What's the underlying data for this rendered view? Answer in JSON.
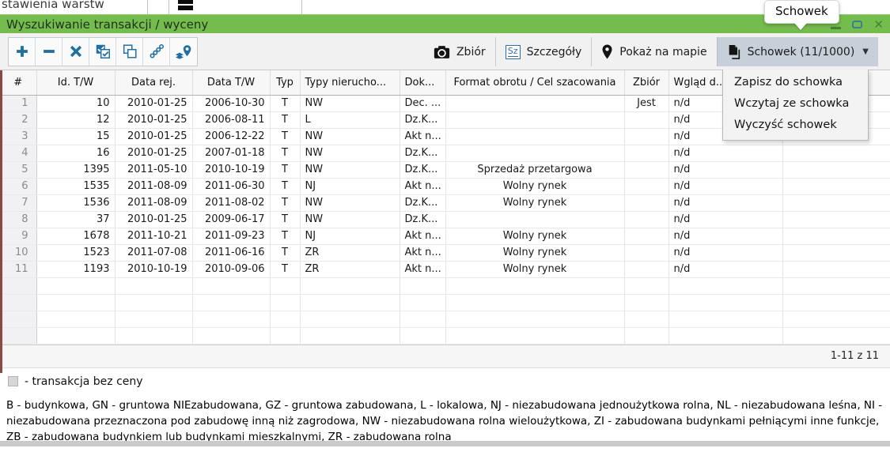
{
  "background": {
    "partial_text": "stawienia warstw"
  },
  "window": {
    "title": "Wyszukiwanie transakcji / wyceny"
  },
  "tooltip": {
    "text": "Schowek"
  },
  "toolbar": {
    "left_tools": [
      {
        "name": "add-button",
        "icon": "plus-icon"
      },
      {
        "name": "remove-button",
        "icon": "minus-icon"
      },
      {
        "name": "clear-button",
        "icon": "x-icon"
      },
      {
        "name": "select-all-button",
        "icon": "double-checkbox-icon"
      },
      {
        "name": "selection-button",
        "icon": "overlapping-squares-icon"
      },
      {
        "name": "chain-selection-button",
        "icon": "chain-icon"
      },
      {
        "name": "locate-on-map-button",
        "icon": "layers-pin-icon"
      }
    ],
    "right_buttons": [
      {
        "label": "Zbiór",
        "icon": "camera-icon"
      },
      {
        "label": "Szczegóły",
        "icon": "sz-icon",
        "icon_text": "Sz"
      },
      {
        "label": "Pokaż na mapie",
        "icon": "map-pin-icon"
      },
      {
        "label": "Schowek (11/1000)",
        "icon": "clipboard-icon",
        "caret": "▼",
        "active": true
      }
    ]
  },
  "dropdown": {
    "items": [
      "Zapisz do schowka",
      "Wczytaj ze schowka",
      "Wyczyść schowek"
    ]
  },
  "table": {
    "columns": [
      "#",
      "Id. T/W",
      "Data rej.",
      "Data T/W",
      "Typ",
      "Typy nierucho...",
      "Dok...",
      "Format obrotu / Cel szacowania",
      "Zbiór",
      "Wgląd d...",
      ""
    ],
    "rows": [
      [
        "1",
        "10",
        "2010-01-25",
        "2006-10-30",
        "T",
        "NW",
        "Dec. ...",
        "",
        "Jest",
        "n/d",
        ""
      ],
      [
        "2",
        "12",
        "2010-01-25",
        "2006-08-11",
        "T",
        "L",
        "Dz.K...",
        "",
        "",
        "n/d",
        ""
      ],
      [
        "3",
        "15",
        "2010-01-25",
        "2006-12-22",
        "T",
        "NW",
        "Akt n...",
        "",
        "",
        "n/d",
        ""
      ],
      [
        "4",
        "16",
        "2010-01-25",
        "2007-01-18",
        "T",
        "NW",
        "Dz.K...",
        "",
        "",
        "n/d",
        ""
      ],
      [
        "5",
        "1395",
        "2011-05-10",
        "2010-10-19",
        "T",
        "NW",
        "Dz.K...",
        "Sprzedaż przetargowa",
        "",
        "n/d",
        ""
      ],
      [
        "6",
        "1535",
        "2011-08-09",
        "2011-06-30",
        "T",
        "NJ",
        "Akt n...",
        "Wolny rynek",
        "",
        "n/d",
        ""
      ],
      [
        "7",
        "1536",
        "2011-08-09",
        "2011-08-02",
        "T",
        "NW",
        "Dz.K...",
        "Wolny rynek",
        "",
        "n/d",
        ""
      ],
      [
        "8",
        "37",
        "2010-01-25",
        "2009-06-17",
        "T",
        "NW",
        "Dz.K...",
        "",
        "",
        "n/d",
        ""
      ],
      [
        "9",
        "1678",
        "2011-10-21",
        "2011-09-23",
        "T",
        "NJ",
        "Akt n...",
        "Wolny rynek",
        "",
        "n/d",
        ""
      ],
      [
        "10",
        "1523",
        "2011-07-08",
        "2011-06-16",
        "T",
        "ZR",
        "Akt n...",
        "Wolny rynek",
        "",
        "n/d",
        ""
      ],
      [
        "11",
        "1193",
        "2010-10-19",
        "2010-09-06",
        "T",
        "ZR",
        "Akt n...",
        "Wolny rynek",
        "",
        "n/d",
        ""
      ]
    ],
    "empty_rows": 4
  },
  "pagination": {
    "text": "1-11 z 11"
  },
  "legend": {
    "text": "- transakcja bez ceny"
  },
  "footnote": "B - budynkowa, GN - gruntowa NIEzabudowana, GZ - gruntowa zabudowana, L - lokalowa, NJ - niezabudowana jednoużytkowa rolna, NL - niezabudowana leśna, NI - niezabudowana przeznaczona pod zabudowę inną niż zagrodowa, NW - niezabudowana rolna wieloużytkowa, ZI - zabudowana budynkami pełniącymi inne funkcje, ZB - zabudowana budynkiem lub budynkami mieszkalnymi, ZR - zabudowana rolna",
  "colors": {
    "titlebar_green": "#74bd4d",
    "tool_icon_blue": "#1e6fa5",
    "active_button_bg": "#c7d0d8",
    "row_marker_strip": "#8a4a40"
  }
}
